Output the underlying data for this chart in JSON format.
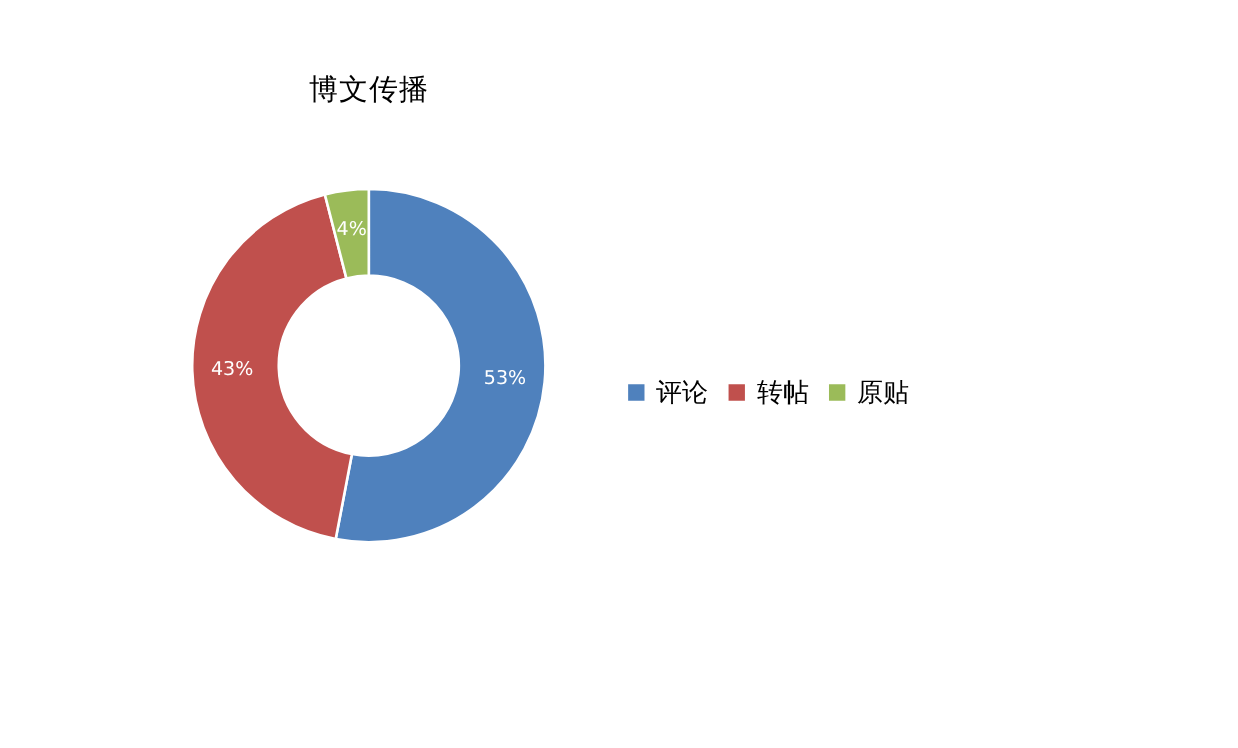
{
  "chart_data": {
    "type": "donut",
    "title": "博文传播",
    "categories": [
      "评论",
      "转帖",
      "原贴"
    ],
    "values": [
      53,
      43,
      4
    ],
    "colors": [
      "#4f81bd",
      "#c0504d",
      "#9bbb59"
    ],
    "value_labels": [
      "53%",
      "43%",
      "4%"
    ],
    "legend": "right"
  }
}
